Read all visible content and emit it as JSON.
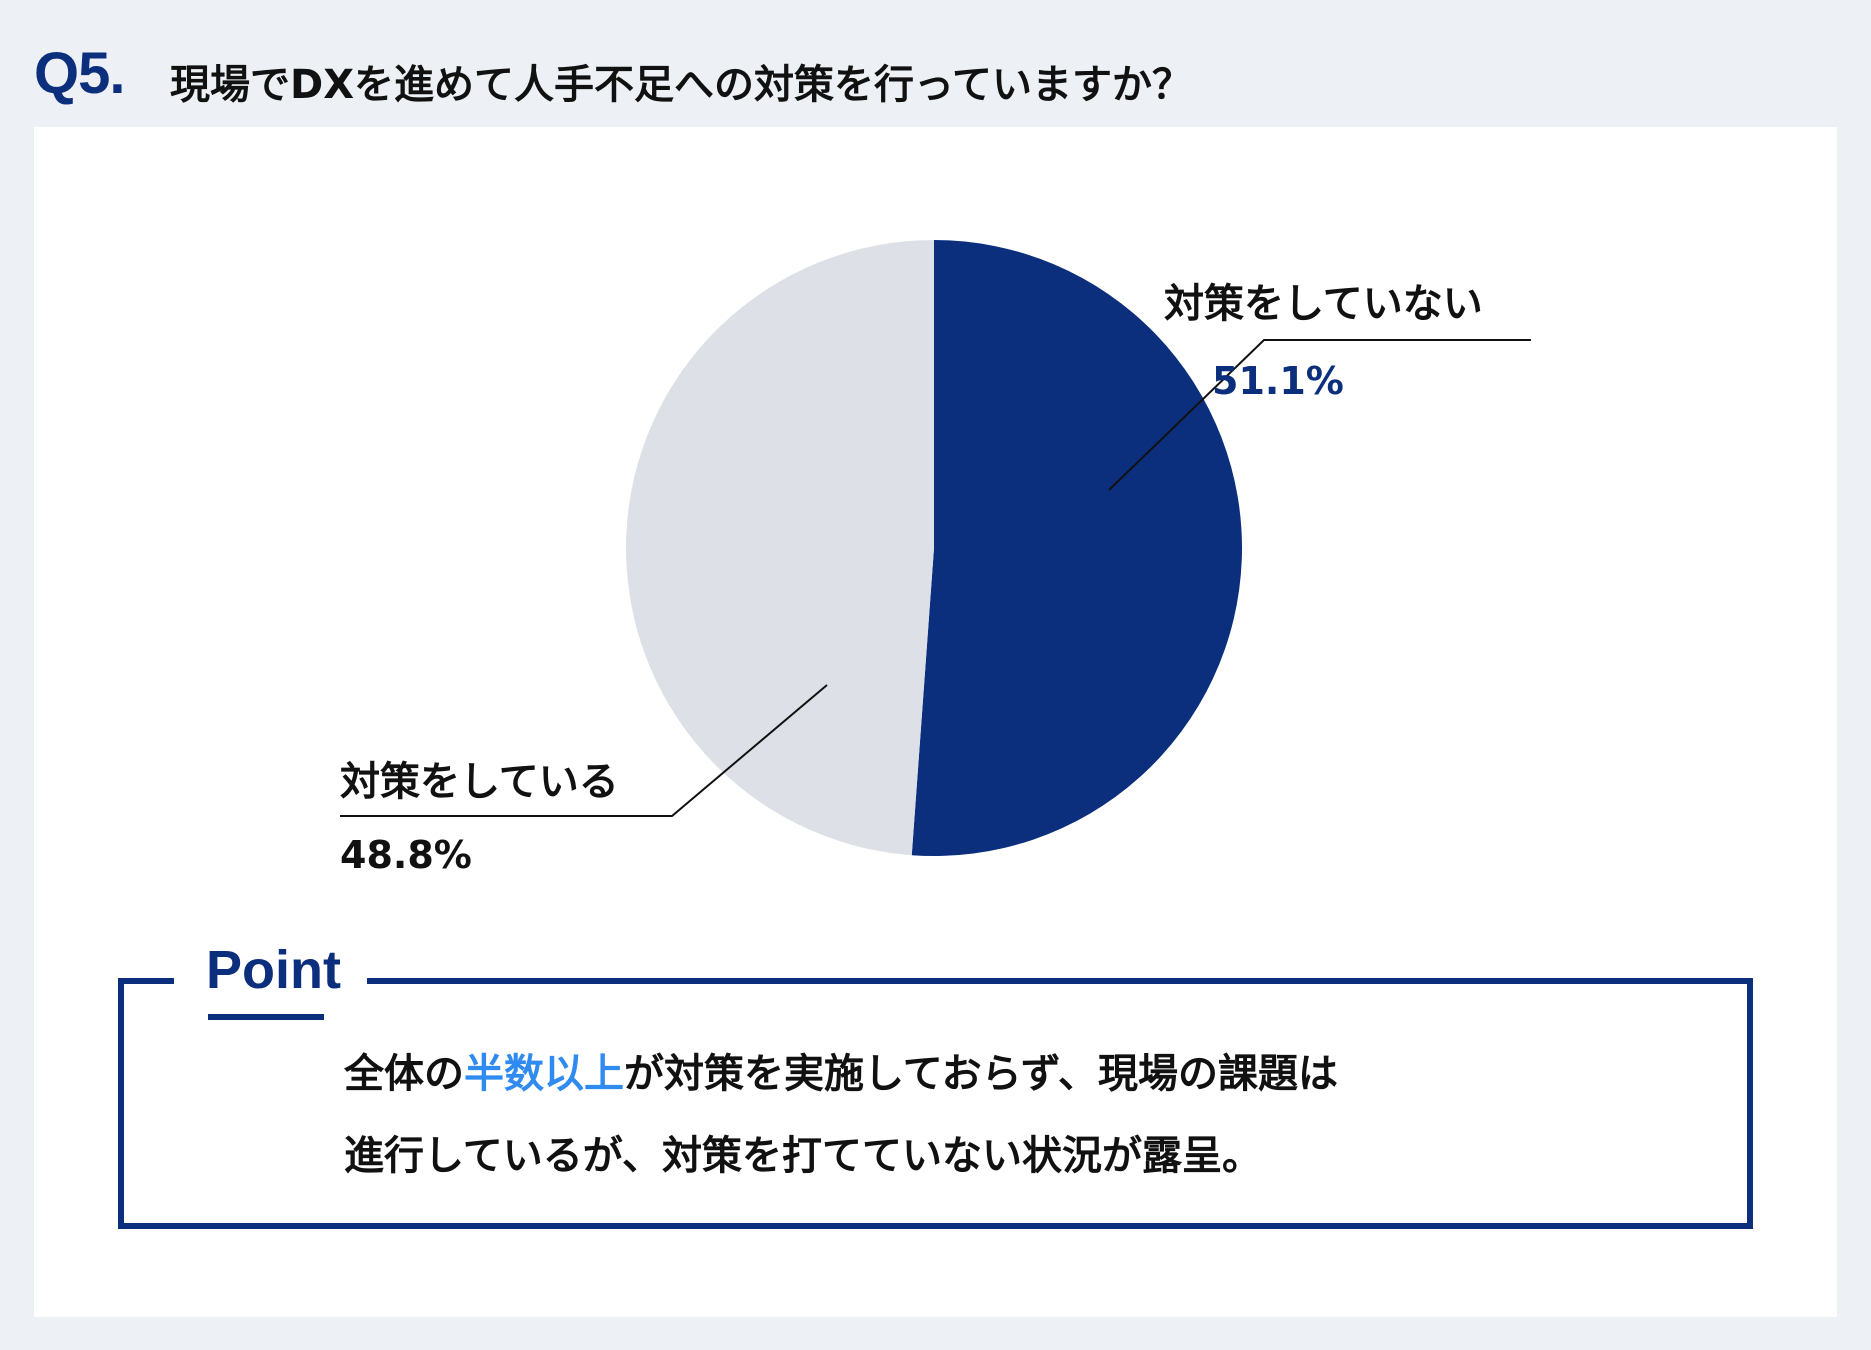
{
  "header": {
    "question_number": "Q5.",
    "question_text": "現場でDXを進めて人手不足への対策を行っていますか？"
  },
  "chart_data": {
    "type": "pie",
    "title": "",
    "slices": [
      {
        "label": "対策をしていない",
        "value": 51.1,
        "value_label": "51.1%",
        "color": "#0b2f7c"
      },
      {
        "label": "対策をしている",
        "value": 48.8,
        "value_label": "48.8%",
        "color": "#dde1e7"
      }
    ],
    "start": "12 o'clock, clockwise",
    "legend": "none (callout labels)"
  },
  "point": {
    "heading": "Point",
    "line1_before": "全体の",
    "line1_highlight": "半数以上",
    "line1_after": "が対策を実施しておらず、現場の課題は",
    "line2": "進行しているが、対策を打てていない状況が露呈。"
  },
  "colors": {
    "accent": "#0b2f7c",
    "highlight": "#2f8bf0",
    "background": "#edf1f6",
    "panel": "#ffffff"
  }
}
